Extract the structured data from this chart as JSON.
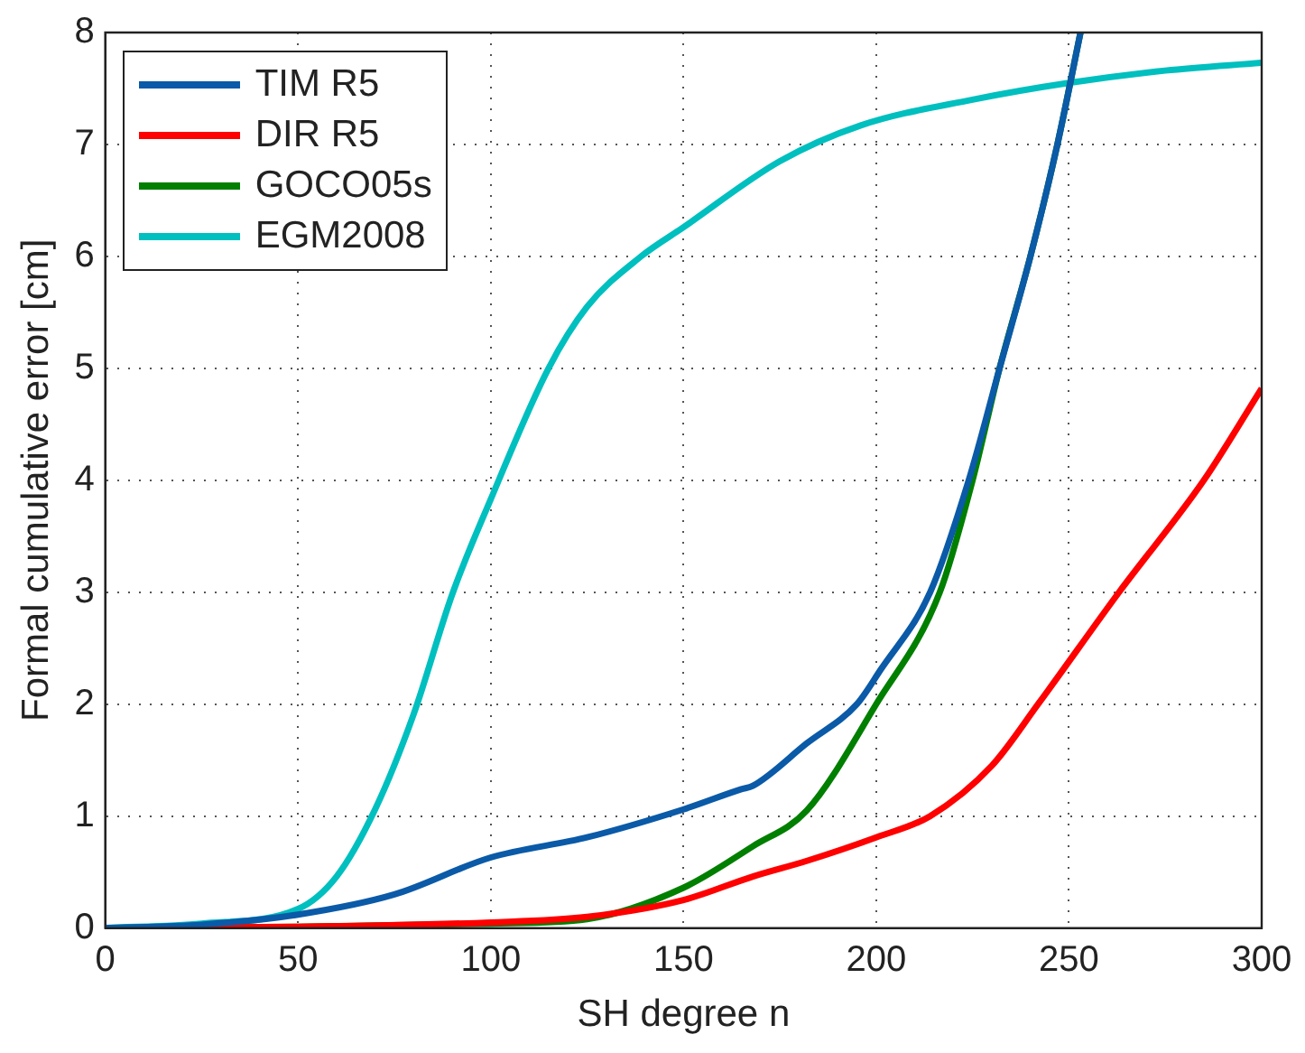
{
  "chart_data": {
    "type": "line",
    "xlabel": "SH degree n",
    "ylabel": "Formal cumulative error [cm]",
    "xlim": [
      0,
      300
    ],
    "xticks": [
      0,
      50,
      100,
      150,
      200,
      250,
      300
    ],
    "ylim": [
      0,
      8
    ],
    "yticks": [
      0,
      1,
      2,
      3,
      4,
      5,
      6,
      7,
      8
    ],
    "grid": true,
    "legend": "top left",
    "line_style": "solid",
    "marker": "none",
    "series": [
      {
        "name": "TIM R5",
        "color": "#0a5aa8",
        "x": [
          0,
          25,
          50,
          75,
          100,
          125,
          150,
          165,
          168,
          182,
          195,
          201,
          214,
          224,
          232,
          240,
          247,
          253
        ],
        "values": [
          0,
          0.03,
          0.12,
          0.3,
          0.63,
          0.81,
          1.06,
          1.24,
          1.27,
          1.65,
          2,
          2.3,
          3,
          4,
          5,
          6,
          7,
          8
        ]
      },
      {
        "name": "DIR R5",
        "color": "#ff0000",
        "x": [
          0,
          50,
          100,
          125,
          150,
          168,
          182,
          200,
          214,
          230,
          242,
          263,
          285,
          300
        ],
        "values": [
          0,
          0.01,
          0.05,
          0.1,
          0.25,
          0.46,
          0.6,
          0.81,
          1,
          1.45,
          2,
          3,
          4,
          4.82
        ]
      },
      {
        "name": "GOCO05s",
        "color": "#007f00",
        "x": [
          0,
          50,
          100,
          125,
          150,
          168,
          182,
          200,
          216.5,
          225,
          232,
          240,
          247,
          253
        ],
        "values": [
          0,
          0.01,
          0.04,
          0.08,
          0.36,
          0.73,
          1.05,
          2,
          3,
          4,
          5,
          6,
          7,
          8
        ]
      },
      {
        "name": "EGM2008",
        "color": "#00bfbf",
        "x": [
          0,
          25,
          50,
          60,
          70,
          80,
          90,
          100,
          115,
          125,
          139,
          150,
          175,
          196,
          225,
          250,
          275,
          300
        ],
        "values": [
          0,
          0.04,
          0.17,
          0.46,
          1.06,
          1.91,
          2.98,
          3.83,
          5,
          5.55,
          6,
          6.26,
          6.85,
          7.17,
          7.4,
          7.55,
          7.66,
          7.73
        ]
      }
    ]
  }
}
